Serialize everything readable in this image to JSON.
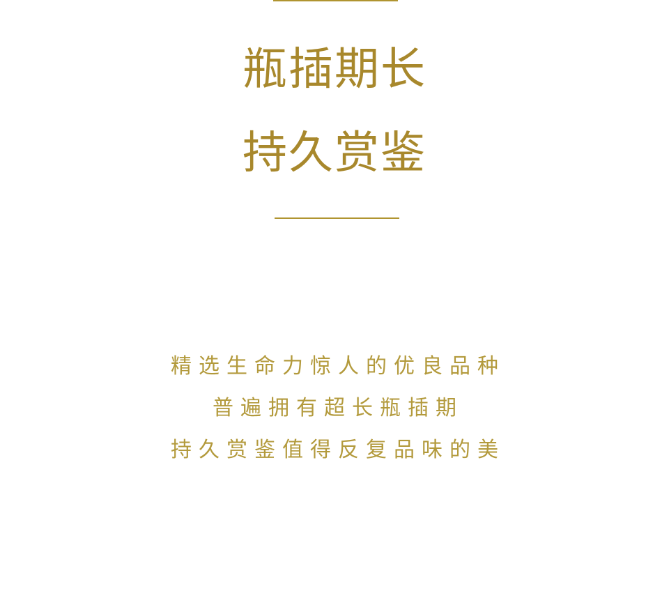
{
  "headline": {
    "line1": "瓶插期长",
    "line2": "持久赏鉴"
  },
  "description": {
    "line1": "精选生命力惊人的优良品种",
    "line2": "普遍拥有超长瓶插期",
    "line3": "持久赏鉴值得反复品味的美"
  },
  "colors": {
    "accent": "#a8882c",
    "background": "#ffffff"
  }
}
